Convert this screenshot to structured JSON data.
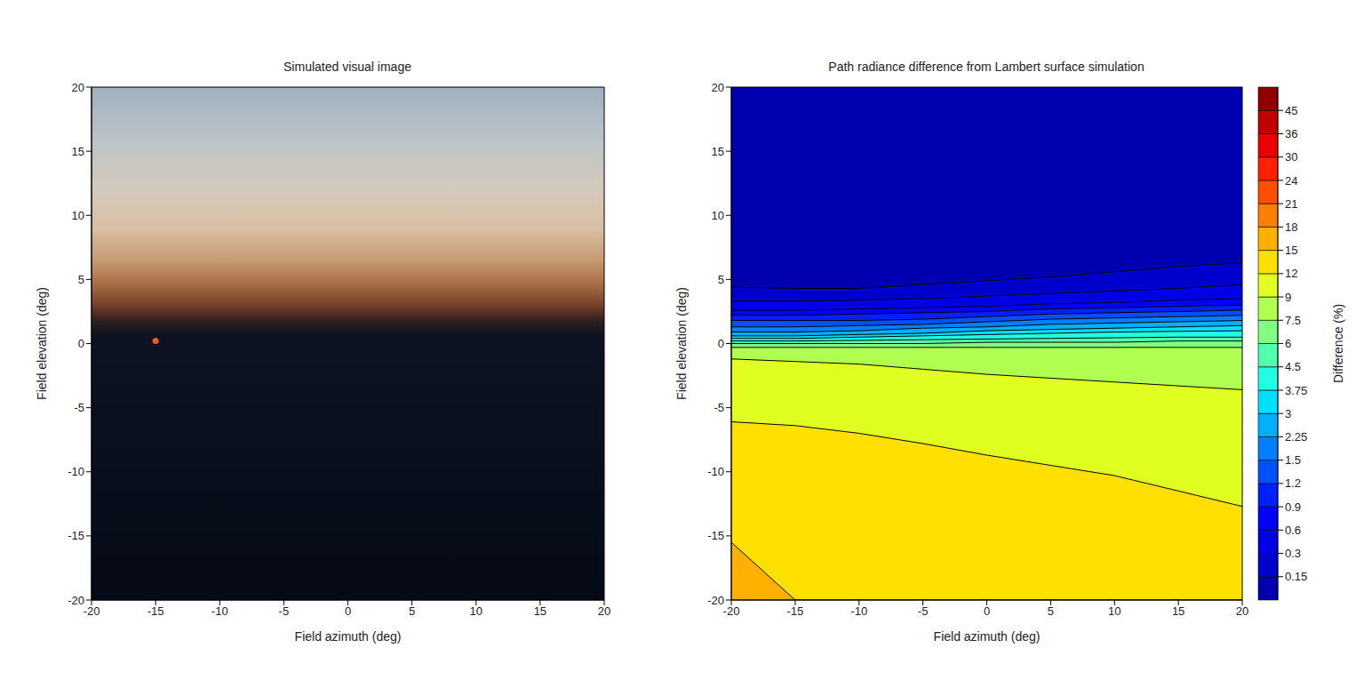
{
  "chart_data": [
    {
      "type": "image",
      "title": "Simulated visual image",
      "x_label": "Field azimuth (deg)",
      "y_label": "Field elevation (deg)",
      "xlim": [
        -20,
        20
      ],
      "ylim": [
        -20,
        20
      ],
      "xticks": [
        -20,
        -15,
        -10,
        -5,
        0,
        5,
        10,
        15,
        20
      ],
      "yticks": [
        -20,
        -15,
        -10,
        -5,
        0,
        5,
        10,
        15,
        20
      ],
      "sky": [
        {
          "elevation": 20,
          "color": "#9fb0c0"
        },
        {
          "elevation": 16,
          "color": "#bcc3c8"
        },
        {
          "elevation": 12,
          "color": "#d4c9bc"
        },
        {
          "elevation": 9,
          "color": "#d9bfa2"
        },
        {
          "elevation": 6.5,
          "color": "#c79a72"
        },
        {
          "elevation": 4.5,
          "color": "#a56a44"
        },
        {
          "elevation": 3,
          "color": "#74402a"
        },
        {
          "elevation": 2,
          "color": "#3e2420"
        },
        {
          "elevation": 1.2,
          "color": "#1a1820"
        },
        {
          "elevation": 0.5,
          "color": "#0d1322"
        },
        {
          "elevation": -20,
          "color": "#050a16"
        }
      ],
      "sun": {
        "x": -15,
        "y": 0.2,
        "color": "#f05a1e"
      }
    },
    {
      "type": "contour",
      "title": "Path radiance difference from Lambert surface simulation",
      "x_label": "Field azimuth (deg)",
      "y_label": "Field elevation (deg)",
      "xlim": [
        -20,
        20
      ],
      "ylim": [
        -20,
        20
      ],
      "xticks": [
        -20,
        -15,
        -10,
        -5,
        0,
        5,
        10,
        15,
        20
      ],
      "yticks": [
        -20,
        -15,
        -10,
        -5,
        0,
        5,
        10,
        15,
        20
      ],
      "x": [
        -20,
        -15,
        -10,
        -5,
        0,
        5,
        10,
        15,
        20
      ],
      "contours": [
        {
          "level": 15,
          "y": [
            -15.5,
            -20,
            -20,
            -20,
            -20,
            -20,
            -20,
            -20,
            -20
          ]
        },
        {
          "level": 12,
          "y": [
            -6.1,
            -6.4,
            -7.0,
            -7.8,
            -8.7,
            -9.5,
            -10.3,
            -11.5,
            -12.7
          ]
        },
        {
          "level": 9,
          "y": [
            -1.2,
            -1.4,
            -1.6,
            -2.0,
            -2.4,
            -2.7,
            -3.0,
            -3.3,
            -3.6
          ]
        },
        {
          "level": 7.5,
          "y": [
            -0.3,
            -0.3,
            -0.3,
            -0.3,
            -0.3,
            -0.3,
            -0.3,
            -0.3,
            -0.3
          ]
        },
        {
          "level": 6,
          "y": [
            0.0,
            0.0,
            0.0,
            0.0,
            0.1,
            0.1,
            0.1,
            0.2,
            0.2
          ]
        },
        {
          "level": 4.5,
          "y": [
            0.2,
            0.2,
            0.25,
            0.3,
            0.35,
            0.4,
            0.45,
            0.5,
            0.5
          ]
        },
        {
          "level": 3.75,
          "y": [
            0.4,
            0.4,
            0.5,
            0.6,
            0.7,
            0.8,
            0.9,
            0.95,
            1.0
          ]
        },
        {
          "level": 3,
          "y": [
            0.6,
            0.6,
            0.7,
            0.8,
            1.0,
            1.1,
            1.2,
            1.3,
            1.4
          ]
        },
        {
          "level": 2.25,
          "y": [
            0.9,
            0.9,
            1.0,
            1.2,
            1.3,
            1.5,
            1.6,
            1.7,
            1.8
          ]
        },
        {
          "level": 1.5,
          "y": [
            1.3,
            1.3,
            1.4,
            1.5,
            1.7,
            1.9,
            2.0,
            2.1,
            2.2
          ]
        },
        {
          "level": 1.2,
          "y": [
            1.8,
            1.8,
            1.8,
            1.9,
            2.1,
            2.3,
            2.4,
            2.5,
            2.6
          ]
        },
        {
          "level": 0.9,
          "y": [
            2.2,
            2.2,
            2.3,
            2.4,
            2.5,
            2.7,
            2.8,
            2.9,
            3.0
          ]
        },
        {
          "level": 0.6,
          "y": [
            2.6,
            2.6,
            2.7,
            2.8,
            2.9,
            3.1,
            3.2,
            3.4,
            3.5
          ]
        },
        {
          "level": 0.3,
          "y": [
            3.3,
            3.3,
            3.4,
            3.5,
            3.7,
            3.9,
            4.1,
            4.3,
            4.6
          ]
        },
        {
          "level": 0.15,
          "y": [
            4.4,
            4.3,
            4.3,
            4.6,
            4.9,
            5.2,
            5.6,
            6.0,
            6.3
          ]
        }
      ],
      "colorbar": {
        "label": "Difference (%)",
        "ticks": [
          0.15,
          0.3,
          0.6,
          0.9,
          1.2,
          1.5,
          2.25,
          3,
          3.75,
          4.5,
          6,
          7.5,
          9,
          12,
          15,
          18,
          21,
          24,
          30,
          36,
          45
        ],
        "colors": [
          "#0000b0",
          "#0000cc",
          "#0000e6",
          "#0000ff",
          "#0020ff",
          "#0050ff",
          "#0080ff",
          "#00b0ff",
          "#00e0ff",
          "#20ffe0",
          "#50ffb0",
          "#80ff80",
          "#b0ff50",
          "#e0ff20",
          "#ffe000",
          "#ffb000",
          "#ff8000",
          "#ff5000",
          "#ff2000",
          "#ef0000",
          "#c00000",
          "#900000"
        ]
      }
    }
  ]
}
